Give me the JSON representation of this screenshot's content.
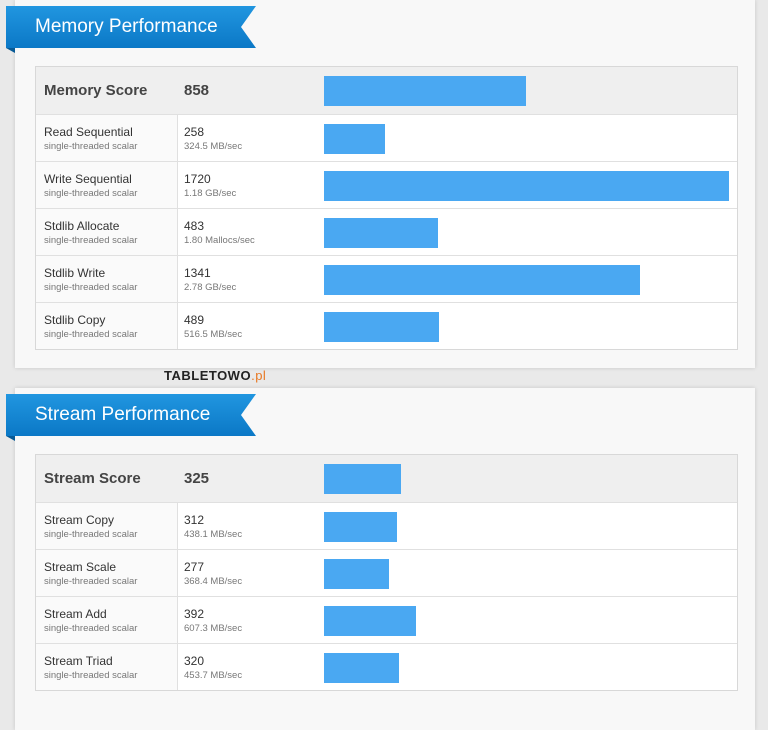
{
  "sections": [
    {
      "title": "Memory Performance",
      "score": {
        "name": "Memory Score",
        "value": 858
      },
      "rows": [
        {
          "name": "Read Sequential",
          "subtitle": "single-threaded scalar",
          "score": 258,
          "rate": "324.5 MB/sec"
        },
        {
          "name": "Write Sequential",
          "subtitle": "single-threaded scalar",
          "score": 1720,
          "rate": "1.18 GB/sec"
        },
        {
          "name": "Stdlib Allocate",
          "subtitle": "single-threaded scalar",
          "score": 483,
          "rate": "1.80 Mallocs/sec"
        },
        {
          "name": "Stdlib Write",
          "subtitle": "single-threaded scalar",
          "score": 1341,
          "rate": "2.78 GB/sec"
        },
        {
          "name": "Stdlib Copy",
          "subtitle": "single-threaded scalar",
          "score": 489,
          "rate": "516.5 MB/sec"
        }
      ]
    },
    {
      "title": "Stream Performance",
      "score": {
        "name": "Stream Score",
        "value": 325
      },
      "rows": [
        {
          "name": "Stream Copy",
          "subtitle": "single-threaded scalar",
          "score": 312,
          "rate": "438.1 MB/sec"
        },
        {
          "name": "Stream Scale",
          "subtitle": "single-threaded scalar",
          "score": 277,
          "rate": "368.4 MB/sec"
        },
        {
          "name": "Stream Add",
          "subtitle": "single-threaded scalar",
          "score": 392,
          "rate": "607.3 MB/sec"
        },
        {
          "name": "Stream Triad",
          "subtitle": "single-threaded scalar",
          "score": 320,
          "rate": "453.7 MB/sec"
        }
      ]
    }
  ],
  "watermark": {
    "text": "TABLETOWO",
    "suffix": ".pl"
  },
  "bar_color": "#4aa8f2"
}
